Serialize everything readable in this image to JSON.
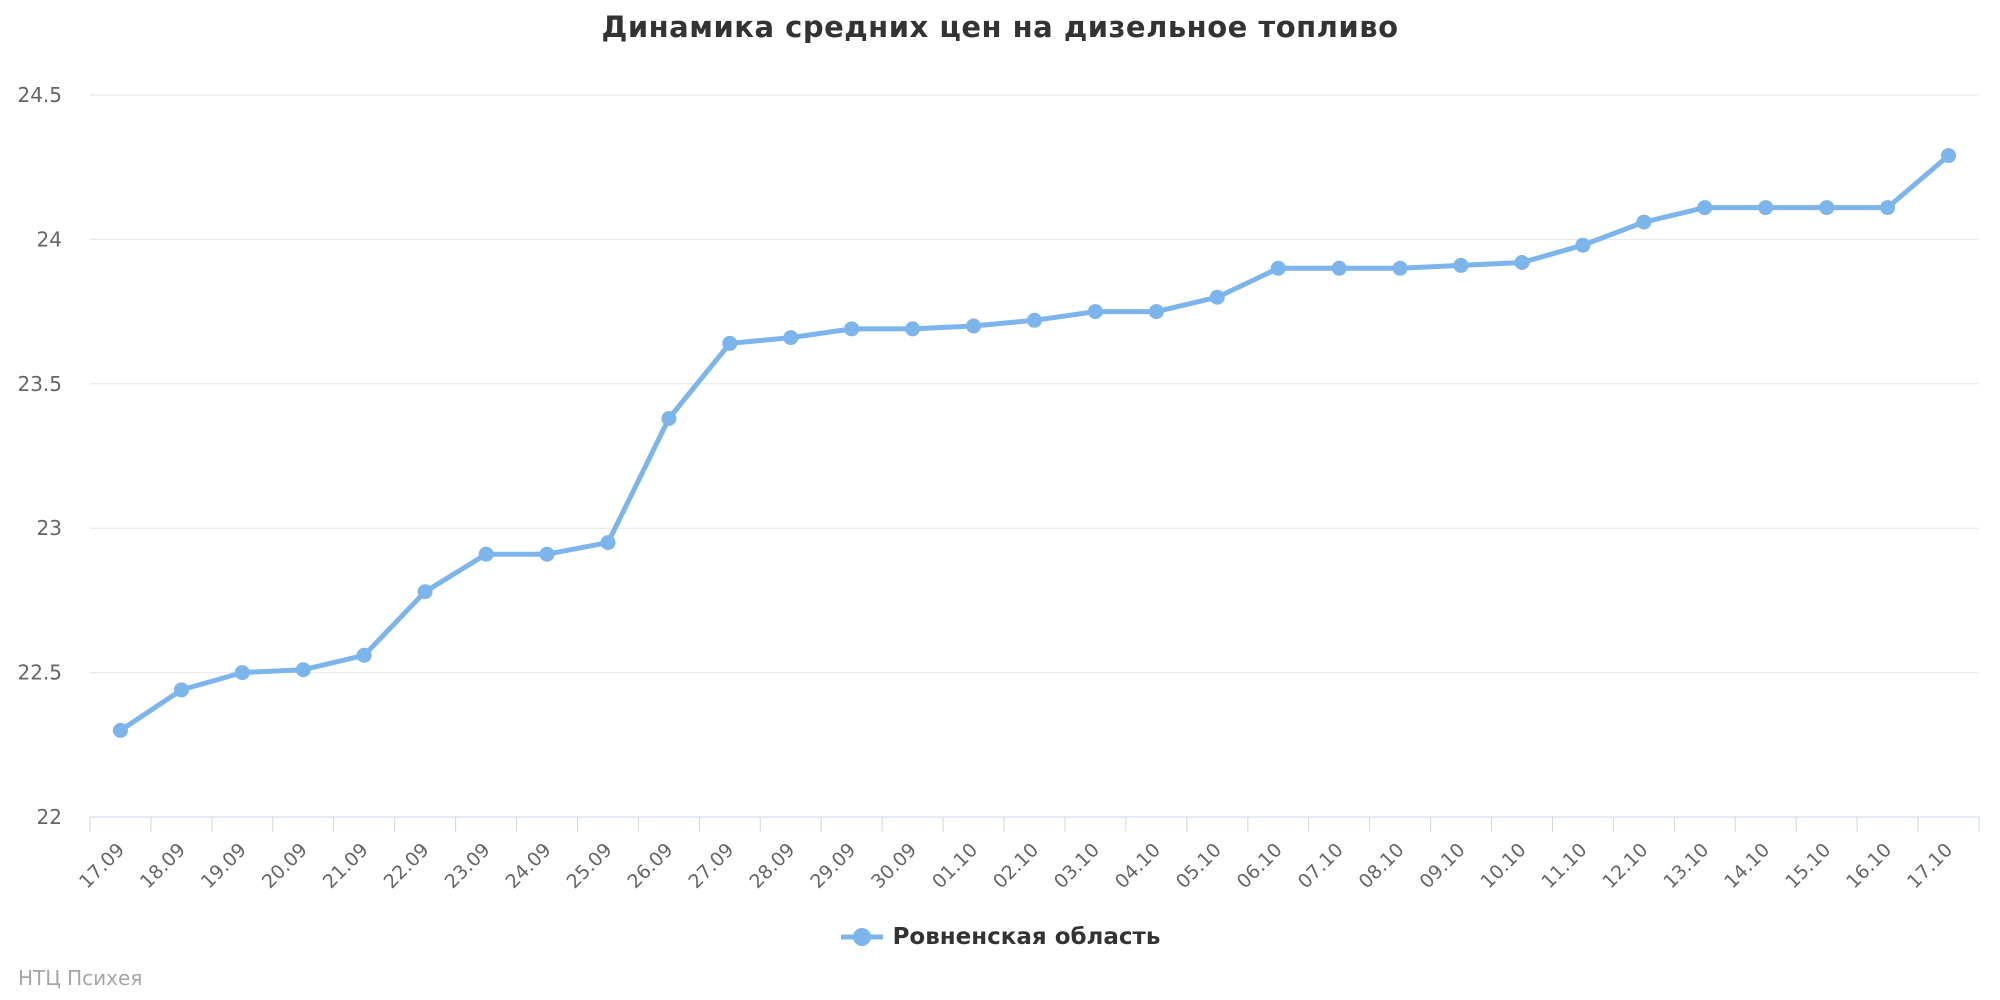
{
  "title": "Динамика средних цен на дизельное топливо",
  "watermark": "НТЦ Психея",
  "legend": {
    "label": "Ровненская область"
  },
  "colors": {
    "series": "#7cb5ec",
    "grid": "#e6e6e6",
    "axis": "#ccd6eb",
    "axis_label": "#666666",
    "title": "#333333",
    "legend_text": "#333333",
    "watermark": "#a6a6a6",
    "background": "#ffffff"
  },
  "chart_data": {
    "type": "line",
    "title": "Динамика средних цен на дизельное топливо",
    "xlabel": "",
    "ylabel": "",
    "grid": true,
    "legend_position": "bottom-center",
    "marker": "circle",
    "ylim": [
      22,
      24.5
    ],
    "yticks": [
      22,
      22.5,
      23,
      23.5,
      24,
      24.5
    ],
    "categories": [
      "17.09",
      "18.09",
      "19.09",
      "20.09",
      "21.09",
      "22.09",
      "23.09",
      "24.09",
      "25.09",
      "26.09",
      "27.09",
      "28.09",
      "29.09",
      "30.09",
      "01.10",
      "02.10",
      "03.10",
      "04.10",
      "05.10",
      "06.10",
      "07.10",
      "08.10",
      "09.10",
      "10.10",
      "11.10",
      "12.10",
      "13.10",
      "14.10",
      "15.10",
      "16.10",
      "17.10"
    ],
    "series": [
      {
        "name": "Ровненская область",
        "values": [
          22.3,
          22.44,
          22.5,
          22.51,
          22.56,
          22.78,
          22.91,
          22.91,
          22.95,
          23.38,
          23.64,
          23.66,
          23.69,
          23.69,
          23.7,
          23.72,
          23.75,
          23.75,
          23.8,
          23.9,
          23.9,
          23.9,
          23.91,
          23.92,
          23.98,
          24.06,
          24.11,
          24.11,
          24.11,
          24.11,
          24.29
        ]
      }
    ]
  }
}
